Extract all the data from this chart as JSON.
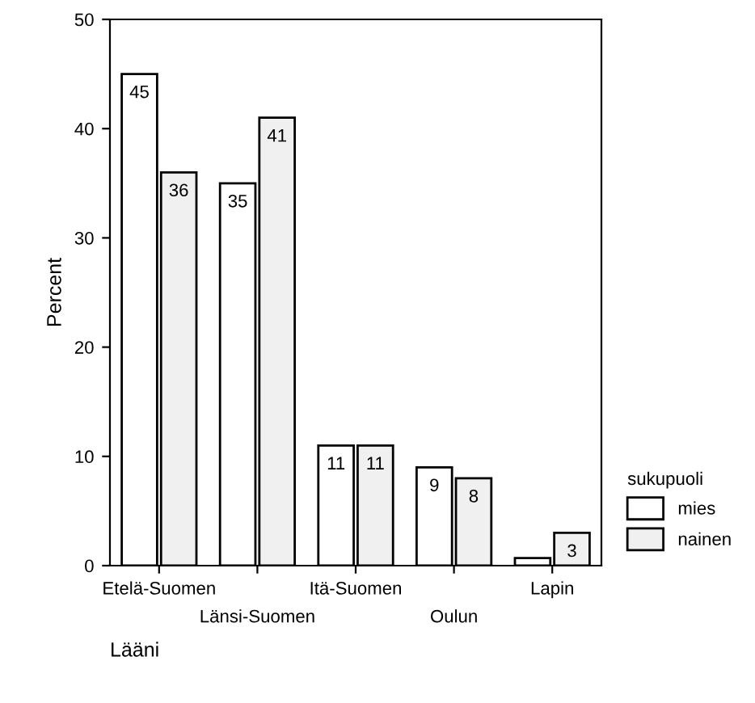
{
  "chart_data": {
    "type": "bar",
    "xlabel": "Lääni",
    "ylabel": "Percent",
    "legend_title": "sukupuoli",
    "categories": [
      "Etelä-Suomen",
      "Länsi-Suomen",
      "Itä-Suomen",
      "Oulun",
      "Lapin"
    ],
    "series": [
      {
        "name": "mies",
        "color": "#ffffff",
        "values": [
          45,
          35,
          11,
          9,
          0.7
        ],
        "value_labels": [
          "45",
          "35",
          "11",
          "9",
          null
        ]
      },
      {
        "name": "nainen",
        "color": "#f0f0f0",
        "values": [
          36,
          41,
          11,
          8,
          3
        ],
        "value_labels": [
          "36",
          "41",
          "11",
          "8",
          "3"
        ]
      }
    ],
    "ylim": [
      0,
      50
    ],
    "yticks": [
      0,
      10,
      20,
      30,
      40,
      50
    ],
    "grid": false,
    "legend": "right"
  }
}
